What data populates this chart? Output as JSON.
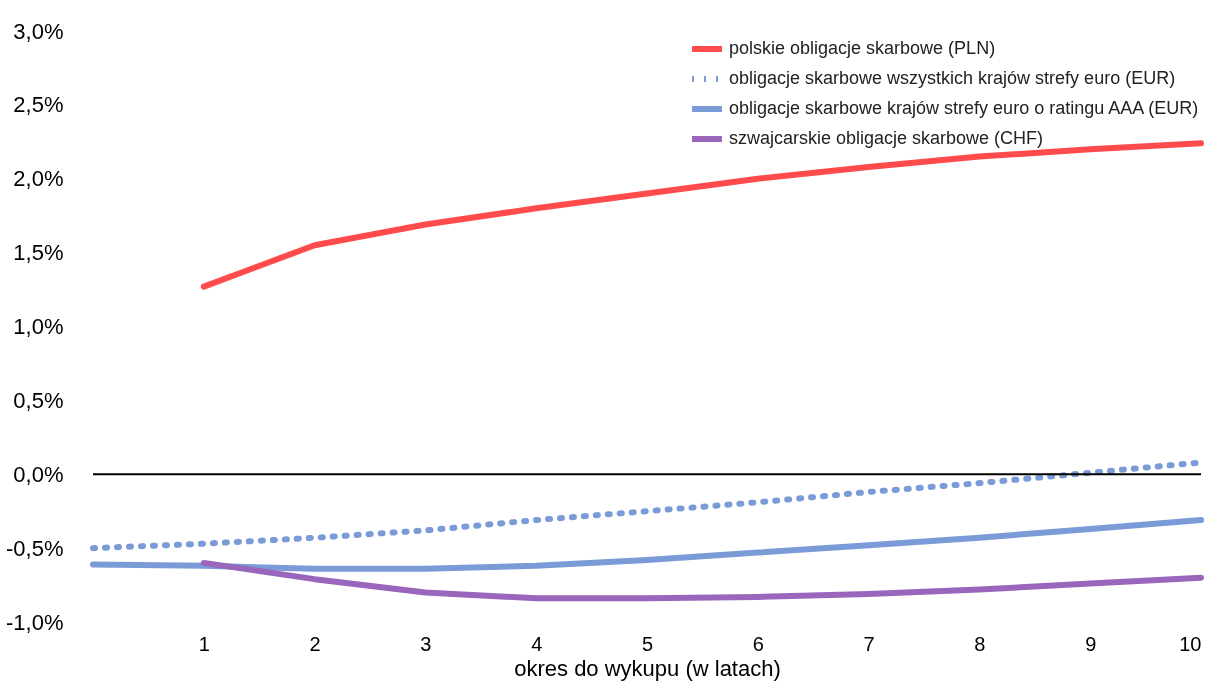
{
  "chart_data": {
    "type": "line",
    "xlabel": "okres do wykupu (w latach)",
    "x": [
      0,
      1,
      2,
      3,
      4,
      5,
      6,
      7,
      8,
      9,
      10
    ],
    "series": [
      {
        "name": "polskie obligacje skarbowe (PLN)",
        "color": "#ff4b4b",
        "line_style": "solid",
        "values": [
          null,
          1.27,
          1.55,
          1.69,
          1.8,
          1.9,
          2.0,
          2.08,
          2.15,
          2.2,
          2.24
        ]
      },
      {
        "name": "obligacje skarbowe wszystkich krajów strefy euro (EUR)",
        "color": "#7b9bd8",
        "line_style": "dotted",
        "values": [
          -0.5,
          -0.47,
          -0.43,
          -0.38,
          -0.31,
          -0.25,
          -0.19,
          -0.12,
          -0.06,
          0.01,
          0.08
        ]
      },
      {
        "name": "obligacje skarbowe krajów strefy euro o ratingu AAA (EUR)",
        "color": "#7b9bd8",
        "line_style": "solid",
        "values": [
          -0.61,
          -0.62,
          -0.64,
          -0.64,
          -0.62,
          -0.58,
          -0.53,
          -0.48,
          -0.43,
          -0.37,
          -0.31
        ]
      },
      {
        "name": "szwajcarskie obligacje skarbowe (CHF)",
        "color": "#9966bb",
        "line_style": "solid",
        "values": [
          null,
          -0.6,
          -0.71,
          -0.8,
          -0.84,
          -0.84,
          -0.83,
          -0.81,
          -0.78,
          -0.74,
          -0.7
        ]
      }
    ],
    "xlim": [
      0,
      10
    ],
    "xticks": [
      1,
      2,
      3,
      4,
      5,
      6,
      7,
      8,
      9,
      10
    ],
    "ylim": [
      -1.0,
      3.0
    ],
    "yticks": [
      {
        "value": -1.0,
        "label": "-1,0%"
      },
      {
        "value": -0.5,
        "label": "-0,5%"
      },
      {
        "value": 0,
        "label": "0,0%"
      },
      {
        "value": 0.5,
        "label": "0,5%"
      },
      {
        "value": 1.0,
        "label": "1,0%"
      },
      {
        "value": 1.5,
        "label": "1,5%"
      },
      {
        "value": 2.0,
        "label": "2,0%"
      },
      {
        "value": 2.5,
        "label": "2,5%"
      },
      {
        "value": 3.0,
        "label": "3,0%"
      }
    ],
    "ref_lines": [
      {
        "axis": "y",
        "value": 0,
        "color": "#000000",
        "line_style": "solid"
      }
    ],
    "grid": false,
    "legend": "top right",
    "marker": "none"
  }
}
